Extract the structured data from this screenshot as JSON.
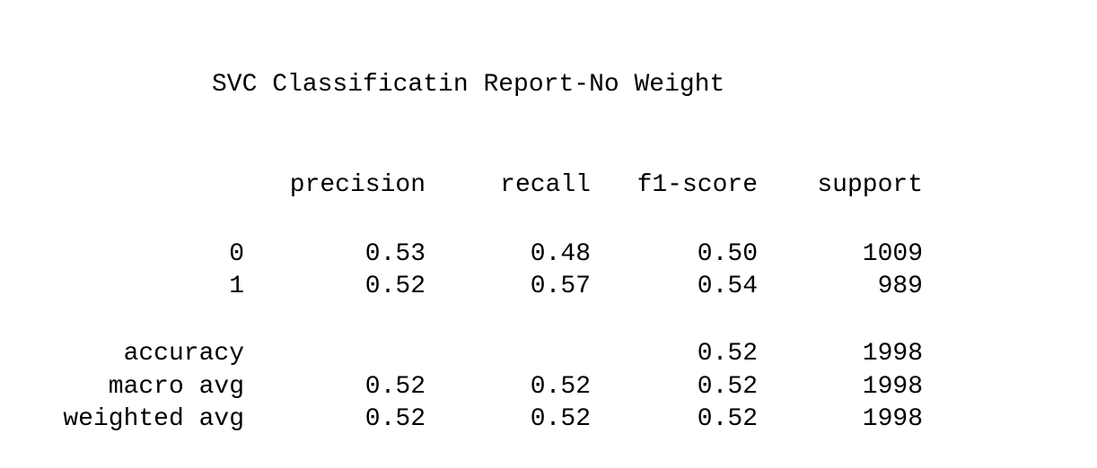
{
  "title": "SVC Classificatin Report-No Weight",
  "headers": {
    "precision": "precision",
    "recall": "recall",
    "f1": "f1-score",
    "support": "support"
  },
  "rows": [
    {
      "label": "0",
      "precision": "0.53",
      "recall": "0.48",
      "f1": "0.50",
      "support": "1009"
    },
    {
      "label": "1",
      "precision": "0.52",
      "recall": "0.57",
      "f1": "0.54",
      "support": "989"
    },
    {
      "label": "accuracy",
      "precision": "",
      "recall": "",
      "f1": "0.52",
      "support": "1998"
    },
    {
      "label": "macro avg",
      "precision": "0.52",
      "recall": "0.52",
      "f1": "0.52",
      "support": "1998"
    },
    {
      "label": "weighted avg",
      "precision": "0.52",
      "recall": "0.52",
      "f1": "0.52",
      "support": "1998"
    }
  ]
}
